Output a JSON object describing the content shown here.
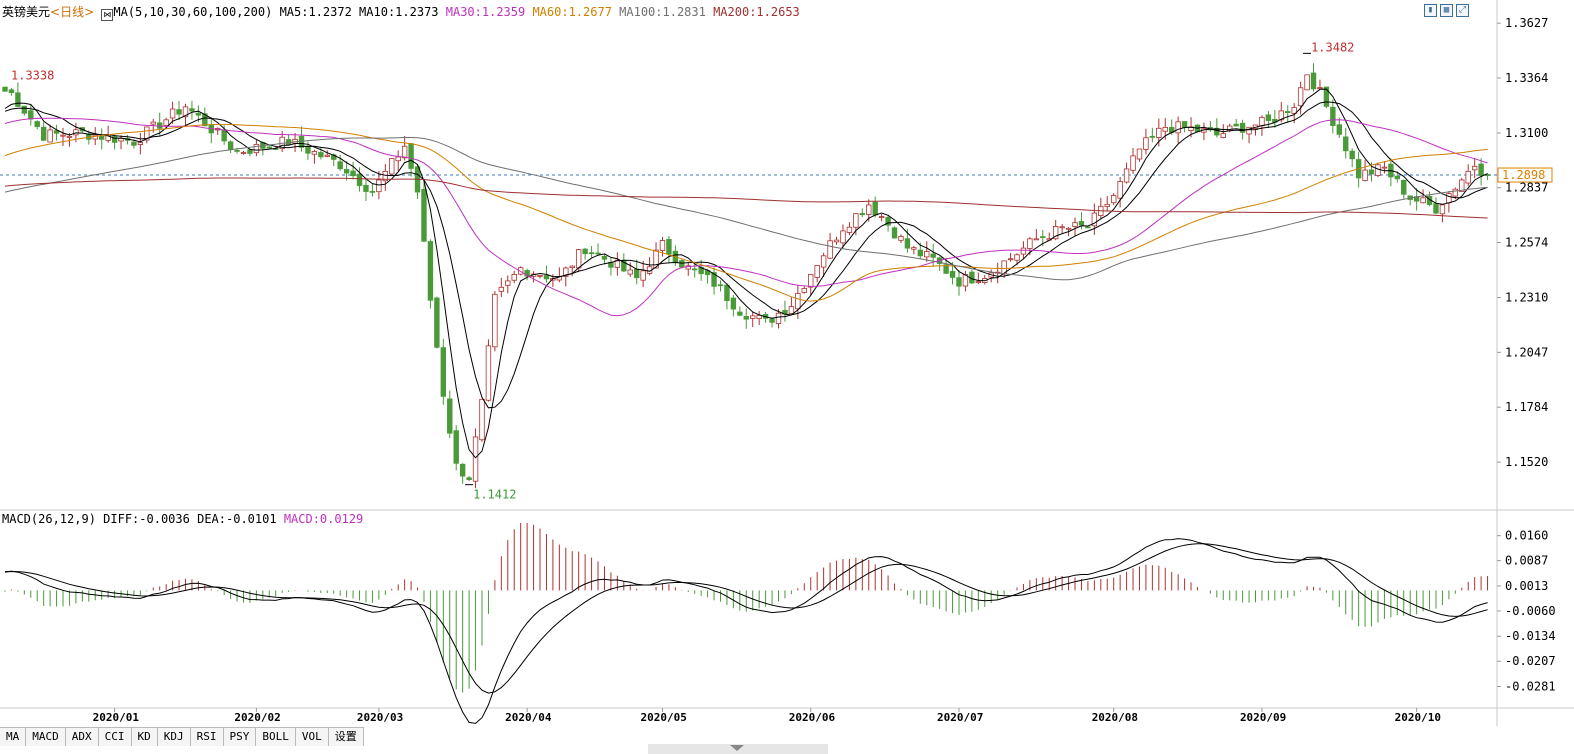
{
  "header": {
    "symbol": "英镑美元",
    "period": "<日线>",
    "ma_title": "MA(5,10,30,60,100,200)",
    "ma_values": [
      {
        "label": "MA5:1.2372",
        "color": "#000000"
      },
      {
        "label": "MA10:1.2373",
        "color": "#000000"
      },
      {
        "label": "MA30:1.2359",
        "color": "#c030c0"
      },
      {
        "label": "MA60:1.2677",
        "color": "#d08000"
      },
      {
        "label": "MA100:1.2831",
        "color": "#707070"
      },
      {
        "label": "MA200:1.2653",
        "color": "#a03030"
      }
    ]
  },
  "macd_header": {
    "title": "MACD(26,12,9)",
    "diff": "DIFF:-0.0036",
    "dea": "DEA:-0.0101",
    "macd": "MACD:0.0129",
    "macd_color": "#c030c0"
  },
  "annotations": {
    "start_price": "1.3338",
    "high_price": "1.3482",
    "low_price": "1.1412",
    "current_price": "1.2898"
  },
  "tabs": [
    "MA",
    "MACD",
    "ADX",
    "CCI",
    "KD",
    "KDJ",
    "RSI",
    "PSY",
    "BOLL",
    "VOL",
    "设置"
  ],
  "chart_data": [
    {
      "type": "candlestick",
      "title": "英镑美元<日线>",
      "x_labels": [
        "2020/01",
        "2020/02",
        "2020/03",
        "2020/04",
        "2020/05",
        "2020/06",
        "2020/07",
        "2020/08",
        "2020/09",
        "2020/10"
      ],
      "y_ticks": [
        "1.3627",
        "1.3364",
        "1.3100",
        "1.2837",
        "1.2574",
        "1.2310",
        "1.2047",
        "1.1784",
        "1.1520"
      ],
      "ylim": [
        1.13,
        1.369
      ],
      "current_price": 1.2898,
      "extremes": {
        "start": 1.3338,
        "high": 1.3482,
        "low": 1.1412
      },
      "close_path": [
        [
          0,
          1.333
        ],
        [
          6,
          1.309
        ],
        [
          12,
          1.31
        ],
        [
          20,
          1.306
        ],
        [
          28,
          1.323
        ],
        [
          36,
          1.301
        ],
        [
          44,
          1.306
        ],
        [
          52,
          1.295
        ],
        [
          57,
          1.282
        ],
        [
          60,
          1.295
        ],
        [
          62,
          1.304
        ],
        [
          64,
          1.282
        ],
        [
          66,
          1.23
        ],
        [
          68,
          1.185
        ],
        [
          70,
          1.15
        ],
        [
          72,
          1.145
        ],
        [
          74,
          1.18
        ],
        [
          76,
          1.23
        ],
        [
          80,
          1.245
        ],
        [
          86,
          1.24
        ],
        [
          90,
          1.255
        ],
        [
          94,
          1.248
        ],
        [
          98,
          1.24
        ],
        [
          102,
          1.256
        ],
        [
          106,
          1.245
        ],
        [
          110,
          1.238
        ],
        [
          114,
          1.225
        ],
        [
          118,
          1.219
        ],
        [
          122,
          1.228
        ],
        [
          126,
          1.248
        ],
        [
          130,
          1.265
        ],
        [
          134,
          1.276
        ],
        [
          136,
          1.27
        ],
        [
          140,
          1.255
        ],
        [
          144,
          1.249
        ],
        [
          148,
          1.239
        ],
        [
          152,
          1.242
        ],
        [
          156,
          1.25
        ],
        [
          160,
          1.259
        ],
        [
          164,
          1.264
        ],
        [
          168,
          1.265
        ],
        [
          172,
          1.28
        ],
        [
          176,
          1.302
        ],
        [
          180,
          1.313
        ],
        [
          184,
          1.312
        ],
        [
          188,
          1.309
        ],
        [
          192,
          1.313
        ],
        [
          196,
          1.315
        ],
        [
          200,
          1.324
        ],
        [
          202,
          1.339
        ],
        [
          204,
          1.329
        ],
        [
          207,
          1.31
        ],
        [
          210,
          1.29
        ],
        [
          214,
          1.293
        ],
        [
          218,
          1.279
        ],
        [
          222,
          1.274
        ],
        [
          226,
          1.288
        ],
        [
          228,
          1.295
        ],
        [
          230,
          1.2898
        ]
      ],
      "moving_averages": [
        {
          "name": "MA5",
          "color": "#000000",
          "period": 5
        },
        {
          "name": "MA10",
          "color": "#000000",
          "period": 10
        },
        {
          "name": "MA30",
          "color": "#c030c0",
          "period": 30
        },
        {
          "name": "MA60",
          "color": "#d08000",
          "period": 60
        },
        {
          "name": "MA100",
          "color": "#707070",
          "period": 100
        },
        {
          "name": "MA200",
          "color": "#a03030",
          "period": 200
        }
      ],
      "colors": {
        "up": "#b03030",
        "down": "#4a9a3a",
        "price_line": "#3a78c0",
        "label_text": "#e08000"
      }
    },
    {
      "type": "bar",
      "title": "MACD(26,12,9)",
      "y_ticks": [
        "0.0160",
        "0.0087",
        "0.0013",
        "-0.0060",
        "-0.0134",
        "-0.0207",
        "-0.0281"
      ],
      "ylim": [
        -0.0335,
        0.02
      ],
      "series": [
        {
          "name": "DIFF",
          "value": -0.0036,
          "color": "#000000"
        },
        {
          "name": "DEA",
          "value": -0.0101,
          "color": "#000000"
        },
        {
          "name": "MACD",
          "value": 0.0129,
          "color": "#c030c0"
        }
      ]
    }
  ]
}
